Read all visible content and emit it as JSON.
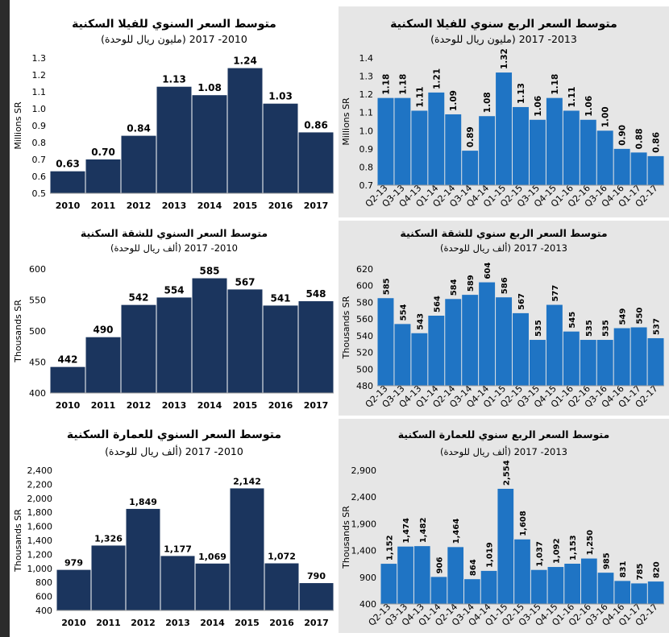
{
  "chart_data": [
    {
      "id": "villa-annual",
      "type": "bar",
      "title": "متوسط السعر السنوي للفيلا السكنية",
      "subtitle": "(مليون ريال للوحدة) 2010- 2017",
      "ylabel": "Millions SR",
      "categories": [
        "2010",
        "2011",
        "2012",
        "2013",
        "2014",
        "2015",
        "2016",
        "2017"
      ],
      "values": [
        0.63,
        0.7,
        0.84,
        1.13,
        1.08,
        1.24,
        1.03,
        0.86
      ],
      "labels": [
        "0.63",
        "0.70",
        "0.84",
        "1.13",
        "1.08",
        "1.24",
        "1.03",
        "0.86"
      ],
      "ylim": [
        0.5,
        1.3
      ],
      "yticks": [
        "0.5",
        "0.6",
        "0.7",
        "0.8",
        "0.9",
        "1.0",
        "1.1",
        "1.2",
        "1.3"
      ],
      "bar_color": "#1b355e",
      "background": "#ffffff",
      "grid": false
    },
    {
      "id": "villa-quarterly",
      "type": "bar",
      "title": "متوسط السعر الربع سنوي للفيلا السكنية",
      "subtitle": "(مليون ريال للوحدة) 2013- 2017",
      "ylabel": "Millions SR",
      "categories": [
        "Q2-13",
        "Q3-13",
        "Q4-13",
        "Q1-14",
        "Q2-14",
        "Q3-14",
        "Q4-14",
        "Q1-15",
        "Q2-15",
        "Q3-15",
        "Q4-15",
        "Q1-16",
        "Q2-16",
        "Q3-16",
        "Q4-16",
        "Q1-17",
        "Q2-17"
      ],
      "values": [
        1.18,
        1.18,
        1.11,
        1.21,
        1.09,
        0.89,
        1.08,
        1.32,
        1.13,
        1.06,
        1.18,
        1.11,
        1.06,
        1.0,
        0.9,
        0.88,
        0.86
      ],
      "labels": [
        "1.18",
        "1.18",
        "1.11",
        "1.21",
        "1.09",
        "0.89",
        "1.08",
        "1.32",
        "1.13",
        "1.06",
        "1.18",
        "1.11",
        "1.06",
        "1.00",
        "0.90",
        "0.88",
        "0.86"
      ],
      "ylim": [
        0.7,
        1.4
      ],
      "yticks": [
        "0.7",
        "0.8",
        "0.9",
        "1.0",
        "1.1",
        "1.2",
        "1.3",
        "1.4"
      ],
      "bar_color": "#1f74c4",
      "background": "#e6e6e6",
      "grid": false
    },
    {
      "id": "apartment-annual",
      "type": "bar",
      "title": "متوسط السعر السنوي للشقة السكنية",
      "subtitle": "(ألف ريال للوحدة) 2010- 2017",
      "ylabel": "Thousands SR",
      "categories": [
        "2010",
        "2011",
        "2012",
        "2013",
        "2014",
        "2015",
        "2016",
        "2017"
      ],
      "values": [
        442,
        490,
        542,
        554,
        585,
        567,
        541,
        548
      ],
      "labels": [
        "442",
        "490",
        "542",
        "554",
        "585",
        "567",
        "541",
        "548"
      ],
      "ylim": [
        400,
        600
      ],
      "yticks": [
        "400",
        "450",
        "500",
        "550",
        "600"
      ],
      "bar_color": "#1b355e",
      "background": "#ffffff",
      "grid": false
    },
    {
      "id": "apartment-quarterly",
      "type": "bar",
      "title": "متوسط السعر الربع سنوي للشقة السكنية",
      "subtitle": "(ألف ريال للوحدة) 2013- 2017",
      "ylabel": "Thousands SR",
      "categories": [
        "Q2-13",
        "Q3-13",
        "Q4-13",
        "Q1-14",
        "Q2-14",
        "Q3-14",
        "Q4-14",
        "Q1-15",
        "Q2-15",
        "Q3-15",
        "Q4-15",
        "Q1-16",
        "Q2-16",
        "Q3-16",
        "Q4-16",
        "Q1-17",
        "Q2-17"
      ],
      "values": [
        585,
        554,
        543,
        564,
        584,
        589,
        604,
        586,
        567,
        535,
        577,
        545,
        535,
        535,
        549,
        550,
        537
      ],
      "labels": [
        "585",
        "554",
        "543",
        "564",
        "584",
        "589",
        "604",
        "586",
        "567",
        "535",
        "577",
        "545",
        "535",
        "535",
        "549",
        "550",
        "537"
      ],
      "ylim": [
        480,
        620
      ],
      "yticks": [
        "480",
        "500",
        "520",
        "540",
        "560",
        "580",
        "600",
        "620"
      ],
      "bar_color": "#1f74c4",
      "background": "#e6e6e6",
      "grid": false
    },
    {
      "id": "building-annual",
      "type": "bar",
      "title": "متوسط السعر السنوي للعمارة السكنية",
      "subtitle": "(ألف ريال للوحدة) 2010- 2017",
      "ylabel": "Thousands SR",
      "categories": [
        "2010",
        "2011",
        "2012",
        "2013",
        "2014",
        "2015",
        "2016",
        "2017"
      ],
      "values": [
        979,
        1326,
        1849,
        1177,
        1069,
        2142,
        1072,
        790
      ],
      "labels": [
        "979",
        "1,326",
        "1,849",
        "1,177",
        "1,069",
        "2,142",
        "1,072",
        "790"
      ],
      "ylim": [
        400,
        2400
      ],
      "yticks": [
        "400",
        "600",
        "800",
        "1,000",
        "1,200",
        "1,400",
        "1,600",
        "1,800",
        "2,000",
        "2,200",
        "2,400"
      ],
      "bar_color": "#1b355e",
      "background": "#ffffff",
      "grid": false
    },
    {
      "id": "building-quarterly",
      "type": "bar",
      "title": "متوسط السعر الربع سنوي للعمارة السكنية",
      "subtitle": "(ألف ريال للوحدة) 2013- 2017",
      "ylabel": "Thousands SR",
      "categories": [
        "Q2-13",
        "Q3-13",
        "Q4-13",
        "Q1-14",
        "Q2-14",
        "Q3-14",
        "Q4-14",
        "Q1-15",
        "Q2-15",
        "Q3-15",
        "Q4-15",
        "Q1-16",
        "Q2-16",
        "Q3-16",
        "Q4-16",
        "Q1-17",
        "Q2-17"
      ],
      "values": [
        1152,
        1474,
        1482,
        906,
        1464,
        864,
        1019,
        2554,
        1608,
        1037,
        1092,
        1153,
        1250,
        985,
        831,
        785,
        820
      ],
      "labels": [
        "1,152",
        "1,474",
        "1,482",
        "906",
        "1,464",
        "864",
        "1,019",
        "2,554",
        "1,608",
        "1,037",
        "1,092",
        "1,153",
        "1,250",
        "985",
        "831",
        "785",
        "820"
      ],
      "ylim": [
        400,
        2900
      ],
      "yticks": [
        "400",
        "900",
        "1,400",
        "1,900",
        "2,400",
        "2,900"
      ],
      "bar_color": "#1f74c4",
      "background": "#e6e6e6",
      "grid": false
    }
  ]
}
